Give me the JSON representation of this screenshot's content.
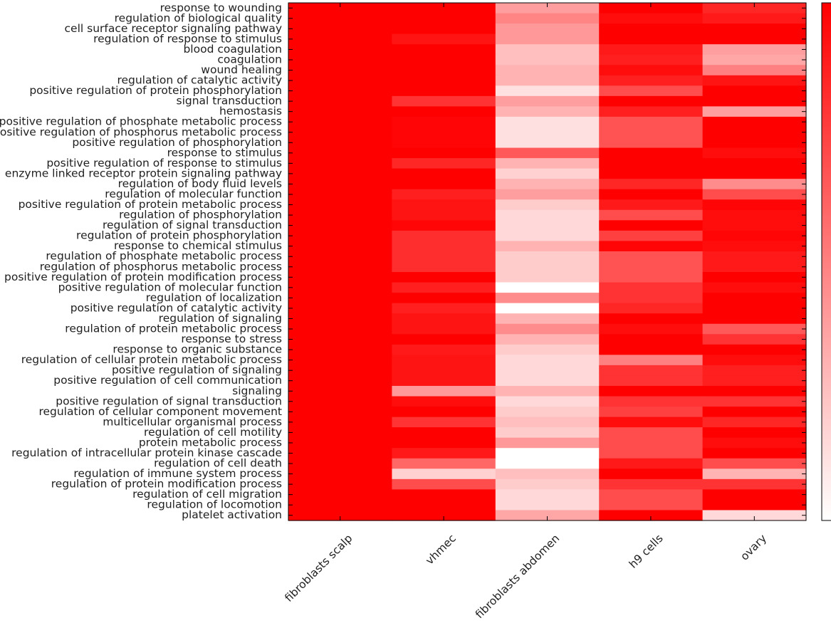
{
  "chart_data": {
    "type": "heatmap",
    "columns": [
      "fibroblasts scalp",
      "vhmec",
      "fibroblasts abdomen",
      "h9 cells",
      "ovary"
    ],
    "rows": [
      "response to wounding",
      "regulation of biological quality",
      "cell surface receptor signaling pathway",
      "regulation of response to stimulus",
      "blood coagulation",
      "coagulation",
      "wound healing",
      "regulation of catalytic activity",
      "positive regulation of protein phosphorylation",
      "signal transduction",
      "hemostasis",
      "positive regulation of phosphate metabolic process",
      "positive regulation of phosphorus metabolic process",
      "positive regulation of phosphorylation",
      "response to stimulus",
      "positive regulation of response to stimulus",
      "enzyme linked receptor protein signaling pathway",
      "regulation of body fluid levels",
      "regulation of molecular function",
      "positive regulation of protein metabolic process",
      "regulation of phosphorylation",
      "regulation of signal transduction",
      "regulation of protein phosphorylation",
      "response to chemical stimulus",
      "regulation of phosphate metabolic process",
      "regulation of phosphorus metabolic process",
      "positive regulation of protein modification process",
      "positive regulation of molecular function",
      "regulation of localization",
      "positive regulation of catalytic activity",
      "regulation of signaling",
      "regulation of protein metabolic process",
      "response to stress",
      "response to organic substance",
      "regulation of cellular protein metabolic process",
      "positive regulation of signaling",
      "positive regulation of cell communication",
      "signaling",
      "positive regulation of signal transduction",
      "regulation of cellular component movement",
      "multicellular organismal process",
      "regulation of cell motility",
      "protein metabolic process",
      "regulation of intracellular protein kinase cascade",
      "regulation of cell death",
      "regulation of immune system process",
      "regulation of protein modification process",
      "regulation of cell migration",
      "regulation of locomotion",
      "platelet activation"
    ],
    "values": [
      [
        1.0,
        1.0,
        0.38,
        1.0,
        0.85
      ],
      [
        1.0,
        1.0,
        0.48,
        0.95,
        0.9
      ],
      [
        1.0,
        1.0,
        0.4,
        1.0,
        1.0
      ],
      [
        1.0,
        0.92,
        0.4,
        1.0,
        1.0
      ],
      [
        1.0,
        1.0,
        0.25,
        0.9,
        0.38
      ],
      [
        1.0,
        1.0,
        0.25,
        0.88,
        0.35
      ],
      [
        1.0,
        1.0,
        0.3,
        0.95,
        0.5
      ],
      [
        1.0,
        1.0,
        0.3,
        0.88,
        0.92
      ],
      [
        1.0,
        1.0,
        0.12,
        0.7,
        1.0
      ],
      [
        1.0,
        0.8,
        0.38,
        1.0,
        1.0
      ],
      [
        1.0,
        1.0,
        0.3,
        0.88,
        0.38
      ],
      [
        1.0,
        0.98,
        0.12,
        0.68,
        1.0
      ],
      [
        1.0,
        0.98,
        0.12,
        0.68,
        1.0
      ],
      [
        1.0,
        0.98,
        0.12,
        0.68,
        1.0
      ],
      [
        1.0,
        1.0,
        0.65,
        1.0,
        0.95
      ],
      [
        1.0,
        0.85,
        0.3,
        1.0,
        1.0
      ],
      [
        1.0,
        1.0,
        0.18,
        1.0,
        1.0
      ],
      [
        1.0,
        1.0,
        0.3,
        0.85,
        0.45
      ],
      [
        1.0,
        0.88,
        0.38,
        1.0,
        0.7
      ],
      [
        1.0,
        0.92,
        0.2,
        0.9,
        0.98
      ],
      [
        1.0,
        0.92,
        0.15,
        0.7,
        0.95
      ],
      [
        1.0,
        0.98,
        0.15,
        1.0,
        0.95
      ],
      [
        1.0,
        0.82,
        0.15,
        0.75,
        0.98
      ],
      [
        1.0,
        0.82,
        0.3,
        0.98,
        0.95
      ],
      [
        1.0,
        0.82,
        0.2,
        0.68,
        0.9
      ],
      [
        1.0,
        0.82,
        0.2,
        0.68,
        0.9
      ],
      [
        1.0,
        1.0,
        0.2,
        0.68,
        1.0
      ],
      [
        1.0,
        0.88,
        0.0,
        0.8,
        0.95
      ],
      [
        1.0,
        1.0,
        0.45,
        0.8,
        1.0
      ],
      [
        1.0,
        0.88,
        0.0,
        0.85,
        1.0
      ],
      [
        1.0,
        0.92,
        0.3,
        1.0,
        1.0
      ],
      [
        1.0,
        0.92,
        0.45,
        0.95,
        0.65
      ],
      [
        1.0,
        1.0,
        0.3,
        1.0,
        0.8
      ],
      [
        1.0,
        0.9,
        0.2,
        1.0,
        1.0
      ],
      [
        1.0,
        0.92,
        0.15,
        0.5,
        0.95
      ],
      [
        1.0,
        0.92,
        0.15,
        0.8,
        0.88
      ],
      [
        1.0,
        0.92,
        0.15,
        0.8,
        0.88
      ],
      [
        1.0,
        0.4,
        0.3,
        1.0,
        1.0
      ],
      [
        1.0,
        0.95,
        0.15,
        0.8,
        0.8
      ],
      [
        1.0,
        1.0,
        0.2,
        0.75,
        1.0
      ],
      [
        1.0,
        0.8,
        0.25,
        0.95,
        0.85
      ],
      [
        1.0,
        1.0,
        0.2,
        0.7,
        1.0
      ],
      [
        1.0,
        1.0,
        0.4,
        0.7,
        0.95
      ],
      [
        1.0,
        0.9,
        0.0,
        0.7,
        1.0
      ],
      [
        1.0,
        0.6,
        0.0,
        0.9,
        0.7
      ],
      [
        1.0,
        0.18,
        0.25,
        1.0,
        0.3
      ],
      [
        1.0,
        0.7,
        0.2,
        0.8,
        0.8
      ],
      [
        1.0,
        1.0,
        0.15,
        0.7,
        1.0
      ],
      [
        1.0,
        1.0,
        0.15,
        0.7,
        1.0
      ],
      [
        1.0,
        1.0,
        0.35,
        1.0,
        0.15
      ]
    ],
    "color_scale": {
      "low": "#ffffff",
      "high": "#ff0000",
      "range": [
        0,
        1
      ]
    },
    "grid": false,
    "legend": "colorbar right"
  }
}
